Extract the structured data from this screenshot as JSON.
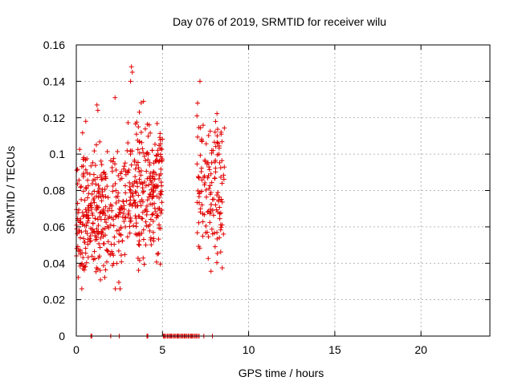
{
  "chart_data": {
    "type": "scatter",
    "title": "Day 076 of 2019, SRMTID for receiver wilu",
    "xlabel": "GPS time / hours",
    "ylabel": "SRMTID / TECUs",
    "xlim": [
      0,
      24
    ],
    "ylim": [
      0,
      0.16
    ],
    "xticks": [
      "0",
      "5",
      "10",
      "15",
      "20"
    ],
    "yticks": [
      "0",
      "0.02",
      "0.04",
      "0.06",
      "0.08",
      "0.1",
      "0.12",
      "0.14",
      "0.16"
    ],
    "grid": true,
    "marker": "plus",
    "color": "#e00000",
    "series": [
      {
        "segments": [
          [
            0.0,
            1.4
          ],
          [
            1.4,
            3.0
          ],
          [
            3.0,
            4.2
          ],
          [
            4.2,
            5.0
          ],
          [
            7.0,
            8.6
          ]
        ],
        "zero_points": [
          0.85,
          0.9,
          2.0,
          2.5,
          4.1,
          4.15,
          5.1,
          5.3,
          5.5,
          5.7,
          5.9,
          6.1,
          6.3,
          6.5,
          6.7,
          6.9,
          7.4,
          7.9
        ],
        "peak_values": [
          0.148,
          0.145,
          0.14,
          0.131,
          0.129,
          0.127,
          0.124,
          0.121,
          0.118,
          0.115,
          0.112
        ],
        "value_range": [
          0.026,
          0.148
        ]
      }
    ]
  }
}
